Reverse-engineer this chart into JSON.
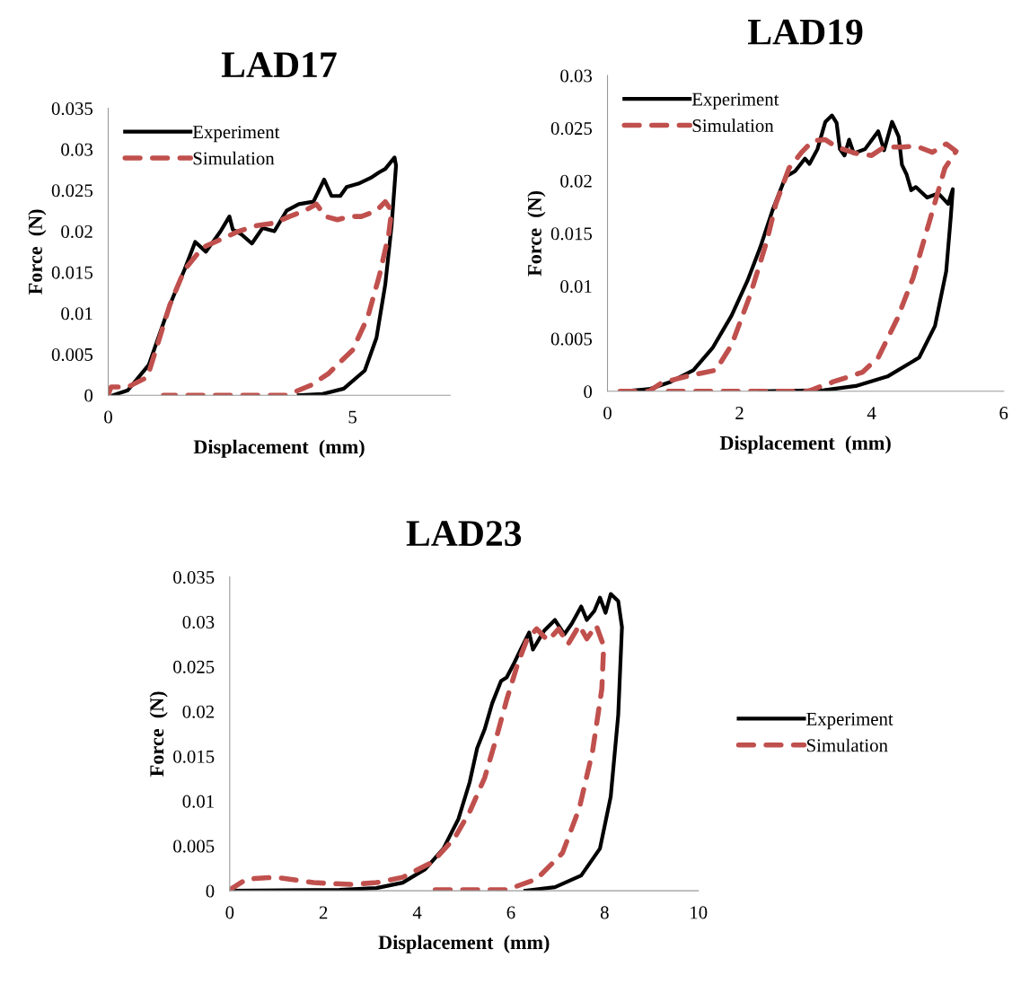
{
  "chart_data": [
    {
      "type": "line",
      "title": "LAD17",
      "xlabel": "Displacement  (mm)",
      "ylabel": "Force  (N)",
      "xlim": [
        0,
        7
      ],
      "xticks": [
        0,
        5
      ],
      "ylim": [
        0,
        0.035
      ],
      "yticks": [
        0,
        0.005,
        0.01,
        0.015,
        0.02,
        0.025,
        0.03,
        0.035
      ],
      "grid": false,
      "legend": "top left",
      "series": [
        {
          "name": "Experiment",
          "color": "#000000",
          "line_style": "solid",
          "x": [
            0.1,
            0.4,
            0.83,
            1.26,
            1.56,
            1.78,
            2.0,
            2.3,
            2.48,
            2.55,
            2.73,
            2.94,
            3.16,
            3.4,
            3.65,
            3.9,
            4.2,
            4.42,
            4.57,
            4.75,
            4.88,
            5.12,
            5.37,
            5.55,
            5.67,
            5.86,
            5.89,
            5.8,
            5.67,
            5.49,
            5.25,
            4.82,
            4.39,
            3.9
          ],
          "values": [
            0,
            0.0006,
            0.0037,
            0.011,
            0.0153,
            0.0187,
            0.0175,
            0.02,
            0.0218,
            0.0202,
            0.0196,
            0.0185,
            0.0204,
            0.02,
            0.0225,
            0.0233,
            0.0236,
            0.0263,
            0.0243,
            0.0243,
            0.0254,
            0.0258,
            0.0265,
            0.0272,
            0.0276,
            0.029,
            0.028,
            0.0207,
            0.0135,
            0.007,
            0.003,
            0.0008,
            0.00015,
            0
          ]
        },
        {
          "name": "Simulation",
          "color": "#c0504d",
          "line_style": "dashed",
          "x": [
            0,
            0.06,
            0.4,
            0.8,
            1.01,
            1.26,
            1.56,
            1.93,
            2.3,
            2.67,
            3.04,
            3.4,
            3.71,
            4.02,
            4.26,
            4.45,
            4.69,
            4.94,
            5.18,
            5.49,
            5.67,
            5.8,
            5.74,
            5.55,
            5.31,
            5.0,
            4.5,
            4.14,
            3.65,
            1.13
          ],
          "values": [
            0.0001,
            0.001,
            0.001,
            0.0022,
            0.0062,
            0.011,
            0.0153,
            0.018,
            0.019,
            0.02,
            0.0207,
            0.021,
            0.0218,
            0.0225,
            0.0233,
            0.0218,
            0.0214,
            0.0218,
            0.0218,
            0.0225,
            0.0236,
            0.0225,
            0.0196,
            0.0146,
            0.0095,
            0.0055,
            0.0026,
            0.0012,
            0,
            0
          ]
        }
      ]
    },
    {
      "type": "line",
      "title": "LAD19",
      "xlabel": "Displacement  (mm)",
      "ylabel": "Force  (N)",
      "xlim": [
        0,
        6
      ],
      "xticks": [
        0,
        2,
        4,
        6
      ],
      "ylim": [
        0,
        0.03
      ],
      "yticks": [
        0,
        0.005,
        0.01,
        0.015,
        0.02,
        0.025,
        0.03
      ],
      "grid": false,
      "legend": "top left",
      "series": [
        {
          "name": "Experiment",
          "color": "#000000",
          "line_style": "solid",
          "x": [
            0.24,
            0.63,
            0.96,
            1.3,
            1.59,
            1.88,
            2.12,
            2.31,
            2.5,
            2.7,
            2.84,
            2.99,
            3.06,
            3.18,
            3.3,
            3.4,
            3.47,
            3.52,
            3.59,
            3.66,
            3.73,
            3.9,
            4.1,
            4.19,
            4.31,
            4.41,
            4.46,
            4.53,
            4.6,
            4.67,
            4.84,
            5.01,
            5.16,
            5.23,
            5.2,
            5.13,
            4.96,
            4.72,
            4.24,
            3.76,
            3.28,
            2.31
          ],
          "values": [
            0,
            0.0002,
            0.0009,
            0.002,
            0.0041,
            0.0072,
            0.0105,
            0.0136,
            0.0172,
            0.0204,
            0.0209,
            0.0221,
            0.0216,
            0.023,
            0.0256,
            0.0262,
            0.0255,
            0.023,
            0.0224,
            0.0239,
            0.0226,
            0.023,
            0.0247,
            0.0229,
            0.0256,
            0.0242,
            0.0215,
            0.0206,
            0.0191,
            0.0194,
            0.0184,
            0.0188,
            0.0178,
            0.0192,
            0.0166,
            0.0114,
            0.0062,
            0.0032,
            0.0014,
            0.0005,
            0.0001,
            0
          ]
        },
        {
          "name": "Simulation",
          "color": "#c0504d",
          "line_style": "dashed",
          "x": [
            0.19,
            0.63,
            0.82,
            1.25,
            1.64,
            1.88,
            2.17,
            2.41,
            2.55,
            2.75,
            2.94,
            3.11,
            3.3,
            3.47,
            3.76,
            4.0,
            4.19,
            4.48,
            4.67,
            4.92,
            5.13,
            5.28,
            5.11,
            4.87,
            4.63,
            4.39,
            4.1,
            3.86,
            3.42,
            3.04,
            0.87
          ],
          "values": [
            0,
            0,
            0.0008,
            0.0015,
            0.002,
            0.0044,
            0.0093,
            0.0142,
            0.0178,
            0.0212,
            0.0227,
            0.0238,
            0.0239,
            0.0232,
            0.0226,
            0.0224,
            0.0232,
            0.0232,
            0.0233,
            0.0227,
            0.0235,
            0.0228,
            0.0212,
            0.016,
            0.0108,
            0.0069,
            0.0032,
            0.0018,
            0.0009,
            0,
            0
          ]
        }
      ]
    },
    {
      "type": "line",
      "title": "LAD23",
      "xlabel": "Displacement  (mm)",
      "ylabel": "Force  (N)",
      "xlim": [
        0,
        10
      ],
      "xticks": [
        0,
        2,
        4,
        6,
        8,
        10
      ],
      "ylim": [
        0,
        0.035
      ],
      "yticks": [
        0,
        0.005,
        0.01,
        0.015,
        0.02,
        0.025,
        0.03,
        0.035
      ],
      "grid": false,
      "legend": "right",
      "series": [
        {
          "name": "Experiment",
          "color": "#000000",
          "line_style": "solid",
          "x": [
            0,
            2.34,
            3.13,
            3.69,
            4.17,
            4.56,
            4.88,
            5.12,
            5.28,
            5.44,
            5.6,
            5.79,
            5.91,
            6.07,
            6.19,
            6.39,
            6.47,
            6.71,
            6.94,
            7.14,
            7.3,
            7.5,
            7.62,
            7.78,
            7.9,
            8.02,
            8.13,
            8.29,
            8.37,
            8.29,
            8.13,
            7.9,
            7.5,
            6.94,
            6.31
          ],
          "values": [
            0,
            0.0001,
            0.0003,
            0.0009,
            0.0024,
            0.0047,
            0.008,
            0.0121,
            0.0159,
            0.018,
            0.0209,
            0.0234,
            0.0238,
            0.0254,
            0.0267,
            0.0288,
            0.0269,
            0.029,
            0.0302,
            0.0286,
            0.0298,
            0.0317,
            0.0302,
            0.0312,
            0.0327,
            0.031,
            0.0331,
            0.0323,
            0.0294,
            0.0196,
            0.0105,
            0.0047,
            0.0017,
            0.0004,
            0
          ]
        },
        {
          "name": "Simulation",
          "color": "#c0504d",
          "line_style": "dashed",
          "x": [
            0,
            0.36,
            0.99,
            1.79,
            2.58,
            3.13,
            3.69,
            4.33,
            4.8,
            5.12,
            5.44,
            5.67,
            5.91,
            6.15,
            6.35,
            6.55,
            6.79,
            7.02,
            7.22,
            7.46,
            7.62,
            7.82,
            7.98,
            7.94,
            7.74,
            7.46,
            7.1,
            6.55,
            5.91,
            4.33,
            4.2
          ],
          "values": [
            0.0001,
            0.0013,
            0.0015,
            0.0009,
            0.0007,
            0.0009,
            0.0015,
            0.0032,
            0.0059,
            0.0088,
            0.0126,
            0.0167,
            0.0213,
            0.0254,
            0.0281,
            0.0292,
            0.0279,
            0.0292,
            0.0275,
            0.0296,
            0.0281,
            0.0296,
            0.0273,
            0.0225,
            0.0155,
            0.0092,
            0.0042,
            0.0013,
            0.0001,
            0.0001,
            0
          ]
        }
      ]
    }
  ]
}
